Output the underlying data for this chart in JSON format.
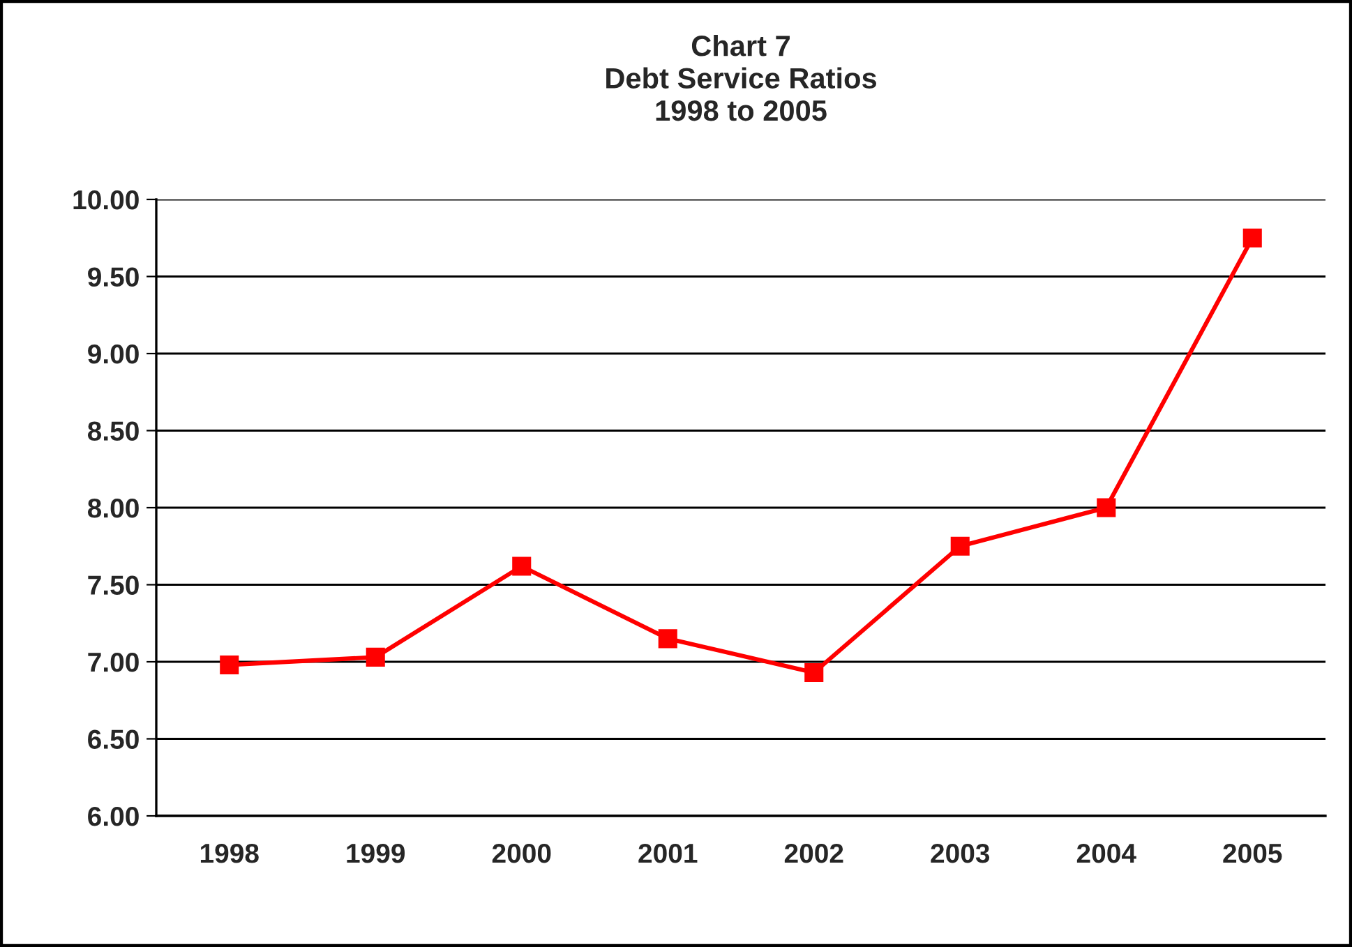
{
  "chart_data": {
    "type": "line",
    "title": "Chart 7\nDebt Service Ratios\n1998 to 2005",
    "categories": [
      "1998",
      "1999",
      "2000",
      "2001",
      "2002",
      "2003",
      "2004",
      "2005"
    ],
    "series": [
      {
        "color": "#ff0000",
        "values": [
          6.98,
          7.03,
          7.62,
          7.15,
          6.93,
          7.75,
          8.0,
          9.75
        ]
      }
    ],
    "ylim": [
      6,
      10
    ],
    "yticks": [
      {
        "value": 6,
        "label": "6.00"
      },
      {
        "value": 6.5,
        "label": "6.50"
      },
      {
        "value": 7,
        "label": "7.00"
      },
      {
        "value": 7.5,
        "label": "7.50"
      },
      {
        "value": 8,
        "label": "8.00"
      },
      {
        "value": 8.5,
        "label": "8.50"
      },
      {
        "value": 9,
        "label": "9.00"
      },
      {
        "value": 9.5,
        "label": "9.50"
      },
      {
        "value": 10,
        "label": "10.00"
      }
    ],
    "grid": "y",
    "marker": "square",
    "line_style": "solid",
    "legend": false
  }
}
